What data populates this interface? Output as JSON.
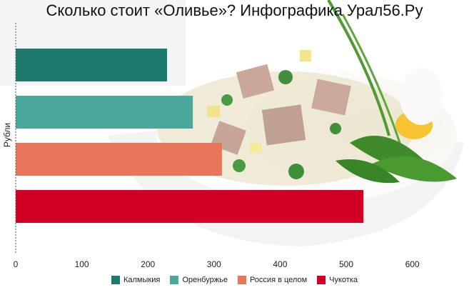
{
  "chart_data": {
    "type": "bar",
    "orientation": "horizontal",
    "title": "Сколько стоит «Оливье»? Инфографика Урал56.Ру",
    "xlabel": "",
    "ylabel": "Рубли",
    "xlim": [
      0,
      680
    ],
    "xticks": [
      0,
      100,
      200,
      300,
      400,
      500,
      600
    ],
    "grid": false,
    "legend_position": "bottom",
    "series": [
      {
        "name": "Калмыкия",
        "value": 229,
        "color": "#1f7a6e"
      },
      {
        "name": "Оренбуржье",
        "value": 268,
        "color": "#4aa79b"
      },
      {
        "name": "Россия в целом",
        "value": 312,
        "color": "#e8765a"
      },
      {
        "name": "Чукотка",
        "value": 526,
        "color": "#d10024"
      }
    ]
  }
}
